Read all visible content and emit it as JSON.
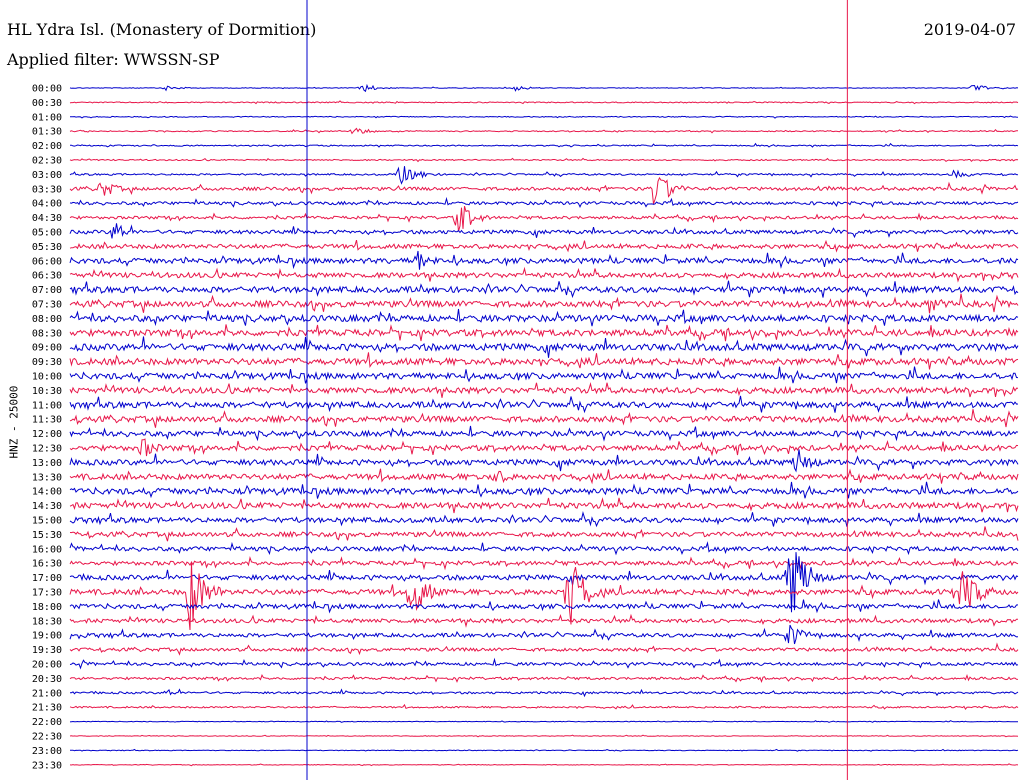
{
  "title": "HL Ydra Isl. (Monastery of Dormition)",
  "subtitle": "Applied filter: WWSSN-SP",
  "date": "2019-04-07",
  "ylabel": "HNZ - 25000",
  "colors": {
    "blue": "#0000cc",
    "red": "#e8174a",
    "marker": "#e8174a",
    "marker_blue": "#0000cc"
  },
  "chart_data": {
    "type": "line",
    "title": "HL Ydra Isl. (Monastery of Dormition)",
    "subtitle": "Applied filter: WWSSN-SP",
    "ylabel": "HNZ - 25000",
    "row_colors": [
      "blue",
      "red"
    ],
    "trace_minutes": 30,
    "row_labels": [
      "00:00",
      "00:30",
      "01:00",
      "01:30",
      "02:00",
      "02:30",
      "03:00",
      "03:30",
      "04:00",
      "04:30",
      "05:00",
      "05:30",
      "06:00",
      "06:30",
      "07:00",
      "07:30",
      "08:00",
      "08:30",
      "09:00",
      "09:30",
      "10:00",
      "10:30",
      "11:00",
      "11:30",
      "12:00",
      "12:30",
      "13:00",
      "13:30",
      "14:00",
      "14:30",
      "15:00",
      "15:30",
      "16:00",
      "16:30",
      "17:00",
      "17:30",
      "18:00",
      "18:30",
      "19:00",
      "19:30",
      "20:00",
      "20:30",
      "21:00",
      "21:30",
      "22:00",
      "22:30",
      "23:00",
      "23:30"
    ],
    "noise_level": [
      0.3,
      0.5,
      0.4,
      0.5,
      0.6,
      0.6,
      0.8,
      1.6,
      1.5,
      1.4,
      1.8,
      2.2,
      2.6,
      2.5,
      2.8,
      3.0,
      3.2,
      3.1,
      3.3,
      3.2,
      3.0,
      2.9,
      2.8,
      2.9,
      2.6,
      2.6,
      2.7,
      2.8,
      3.0,
      2.9,
      2.4,
      2.3,
      2.1,
      2.0,
      2.4,
      2.6,
      2.2,
      2.0,
      1.8,
      1.6,
      1.5,
      1.2,
      1.0,
      0.8,
      0.3,
      0.3,
      0.3,
      0.3
    ],
    "events": [
      {
        "row": 0,
        "minute": 3.0,
        "amplitude": 3
      },
      {
        "row": 0,
        "minute": 9.3,
        "amplitude": 4
      },
      {
        "row": 0,
        "minute": 14.1,
        "amplitude": 3
      },
      {
        "row": 0,
        "minute": 28.6,
        "amplitude": 4
      },
      {
        "row": 3,
        "minute": 9.0,
        "amplitude": 5
      },
      {
        "row": 6,
        "minute": 10.5,
        "amplitude": 14
      },
      {
        "row": 6,
        "minute": 28.0,
        "amplitude": 5
      },
      {
        "row": 7,
        "minute": 1.0,
        "amplitude": 10
      },
      {
        "row": 7,
        "minute": 18.5,
        "amplitude": 22
      },
      {
        "row": 9,
        "minute": 12.3,
        "amplitude": 18
      },
      {
        "row": 10,
        "minute": 1.4,
        "amplitude": 12
      },
      {
        "row": 12,
        "minute": 11.0,
        "amplitude": 12
      },
      {
        "row": 15,
        "minute": 27.2,
        "amplitude": 10
      },
      {
        "row": 25,
        "minute": 2.3,
        "amplitude": 12
      },
      {
        "row": 26,
        "minute": 23.0,
        "amplitude": 16
      },
      {
        "row": 27,
        "minute": 13.4,
        "amplitude": 10
      },
      {
        "row": 34,
        "minute": 22.8,
        "amplitude": 48
      },
      {
        "row": 35,
        "minute": 3.8,
        "amplitude": 42
      },
      {
        "row": 35,
        "minute": 10.8,
        "amplitude": 30
      },
      {
        "row": 35,
        "minute": 15.8,
        "amplitude": 42
      },
      {
        "row": 35,
        "minute": 28.2,
        "amplitude": 32
      },
      {
        "row": 38,
        "minute": 22.8,
        "amplitude": 12
      },
      {
        "row": 42,
        "minute": 3.1,
        "amplitude": 4
      }
    ],
    "markers_minutes": [
      7.5,
      24.6
    ],
    "grid": false,
    "legend": "none"
  }
}
